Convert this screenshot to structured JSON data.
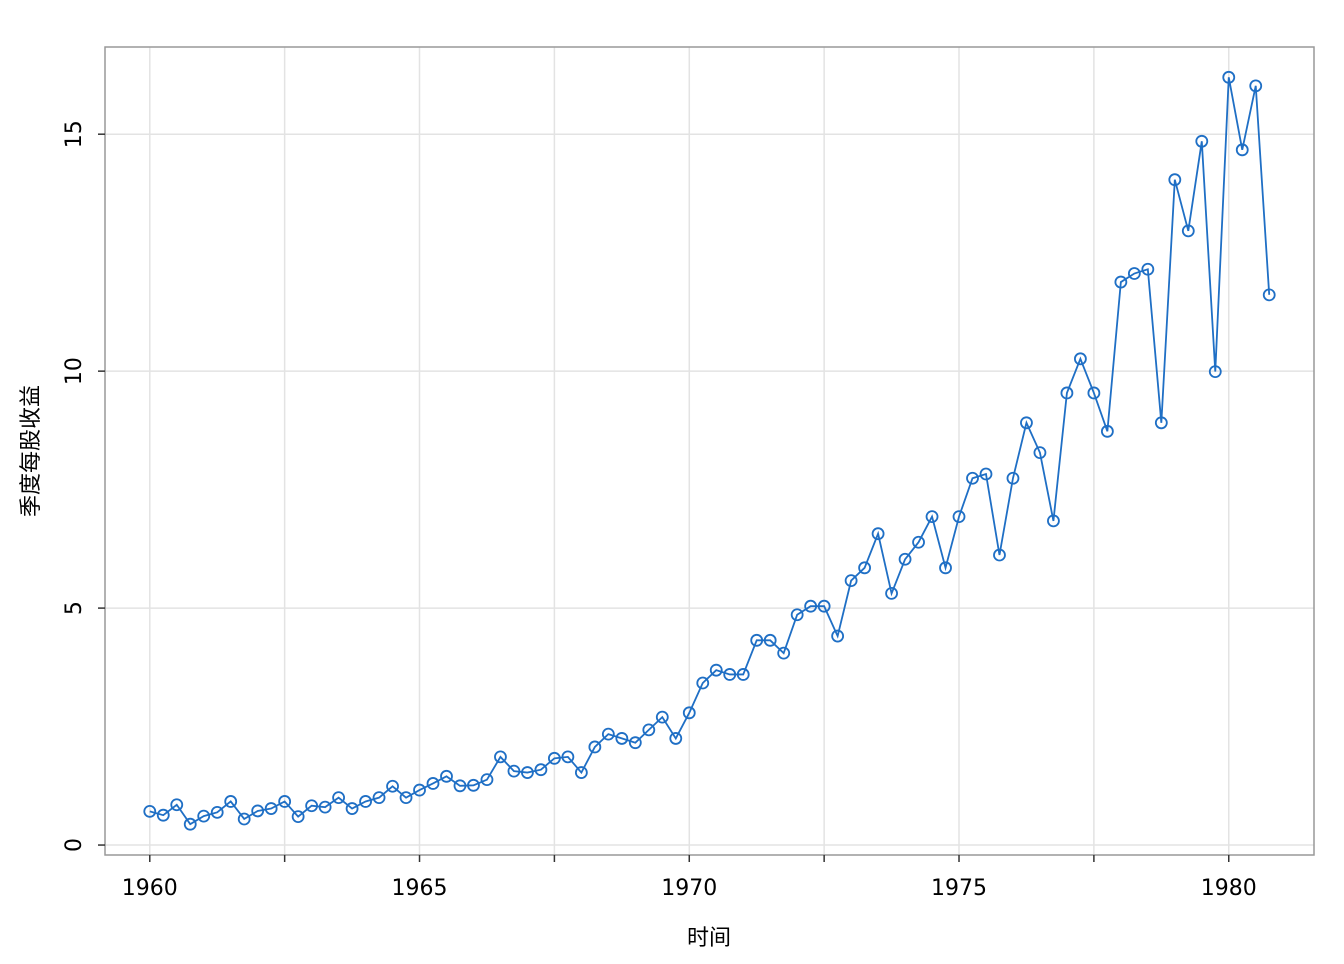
{
  "chart_data": {
    "type": "line",
    "x_label": "时间",
    "y_label": "季度每股收益",
    "x": [
      1960,
      1960.25,
      1960.5,
      1960.75,
      1961,
      1961.25,
      1961.5,
      1961.75,
      1962,
      1962.25,
      1962.5,
      1962.75,
      1963,
      1963.25,
      1963.5,
      1963.75,
      1964,
      1964.25,
      1964.5,
      1964.75,
      1965,
      1965.25,
      1965.5,
      1965.75,
      1966,
      1966.25,
      1966.5,
      1966.75,
      1967,
      1967.25,
      1967.5,
      1967.75,
      1968,
      1968.25,
      1968.5,
      1968.75,
      1969,
      1969.25,
      1969.5,
      1969.75,
      1970,
      1970.25,
      1970.5,
      1970.75,
      1971,
      1971.25,
      1971.5,
      1971.75,
      1972,
      1972.25,
      1972.5,
      1972.75,
      1973,
      1973.25,
      1973.5,
      1973.75,
      1974,
      1974.25,
      1974.5,
      1974.75,
      1975,
      1975.25,
      1975.5,
      1975.75,
      1976,
      1976.25,
      1976.5,
      1976.75,
      1977,
      1977.25,
      1977.5,
      1977.75,
      1978,
      1978.25,
      1978.5,
      1978.75,
      1979,
      1979.25,
      1979.5,
      1979.75,
      1980,
      1980.25,
      1980.5,
      1980.75
    ],
    "series": [
      {
        "color": "#1f6fc5",
        "values": [
          0.71,
          0.63,
          0.85,
          0.44,
          0.61,
          0.69,
          0.92,
          0.55,
          0.72,
          0.77,
          0.92,
          0.6,
          0.83,
          0.8,
          1.0,
          0.77,
          0.92,
          1.0,
          1.24,
          1.0,
          1.16,
          1.3,
          1.45,
          1.25,
          1.26,
          1.38,
          1.86,
          1.56,
          1.53,
          1.59,
          1.83,
          1.86,
          1.53,
          2.07,
          2.34,
          2.25,
          2.16,
          2.43,
          2.7,
          2.25,
          2.79,
          3.42,
          3.69,
          3.6,
          3.6,
          4.32,
          4.32,
          4.05,
          4.86,
          5.04,
          5.04,
          4.41,
          5.58,
          5.85,
          6.57,
          5.31,
          6.03,
          6.39,
          6.93,
          5.85,
          6.93,
          7.74,
          7.83,
          6.12,
          7.74,
          8.91,
          8.28,
          6.84,
          9.54,
          10.26,
          9.54,
          8.73,
          11.88,
          12.06,
          12.15,
          8.91,
          14.04,
          12.96,
          14.85,
          9.99,
          16.2,
          14.67,
          16.02,
          11.61
        ]
      }
    ],
    "xlim": [
      1959.17,
      1981.58
    ],
    "ylim": [
      -0.21,
      16.84
    ],
    "xticks": [
      1960,
      1965,
      1970,
      1975,
      1980
    ],
    "xminor_ticks": [
      1962.5,
      1967.5,
      1972.5,
      1977.5
    ],
    "yticks": [
      0,
      5,
      10,
      15
    ],
    "grid": true
  }
}
